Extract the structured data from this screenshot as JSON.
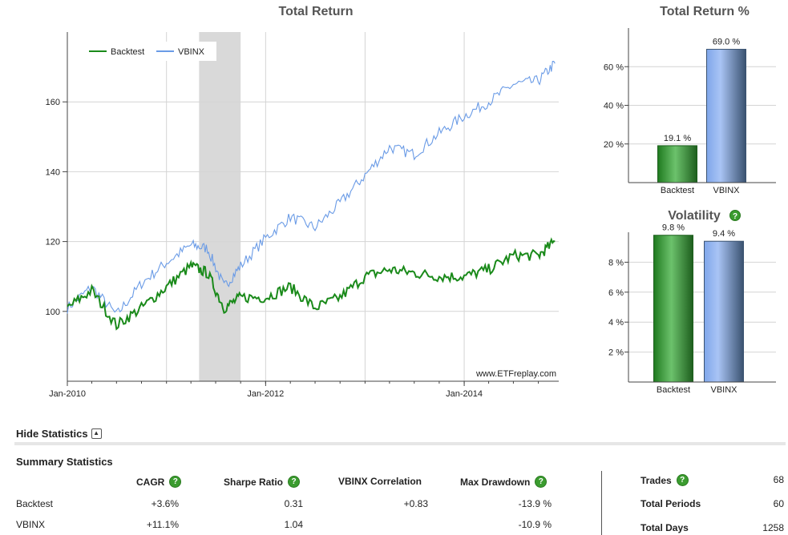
{
  "main_chart": {
    "title": "Total Return",
    "watermark": "www.ETFreplay.com",
    "x_ticks": [
      "Jan-2010",
      "Jan-2012",
      "Jan-2014"
    ],
    "y_ticks": [
      "100",
      "120",
      "140",
      "160"
    ],
    "legend": [
      "Backtest",
      "VBINX"
    ]
  },
  "chart_data": [
    {
      "type": "line",
      "title": "Total Return",
      "xlabel": "",
      "ylabel": "",
      "ylim": [
        80,
        180
      ],
      "xlim": [
        "2010-01",
        "2014-12"
      ],
      "x": [
        "2010-01",
        "2010-04",
        "2010-07",
        "2010-10",
        "2011-01",
        "2011-04",
        "2011-06",
        "2011-08",
        "2011-10",
        "2012-01",
        "2012-04",
        "2012-07",
        "2012-10",
        "2013-01",
        "2013-04",
        "2013-07",
        "2013-10",
        "2014-01",
        "2014-04",
        "2014-07",
        "2014-10",
        "2014-12"
      ],
      "series": [
        {
          "name": "Backtest",
          "color": "#1a8a1a",
          "values": [
            101,
            106,
            96,
            101,
            107,
            113,
            111,
            101,
            104,
            104,
            107,
            101,
            104,
            110,
            112,
            111,
            110,
            110,
            112,
            116,
            116,
            120
          ]
        },
        {
          "name": "VBINX",
          "color": "#6a9be6",
          "values": [
            101,
            107,
            99,
            108,
            114,
            119,
            118,
            107,
            113,
            121,
            127,
            124,
            131,
            139,
            147,
            145,
            151,
            156,
            160,
            165,
            166,
            171
          ]
        }
      ],
      "shaded_region": {
        "start": "2011-05",
        "end": "2011-10",
        "color": "#d8d8d8"
      },
      "legend_position": "top-left",
      "grid": true
    },
    {
      "type": "bar",
      "title": "Total Return %",
      "categories": [
        "Backtest",
        "VBINX"
      ],
      "values": [
        19.1,
        69.0
      ],
      "value_labels": [
        "19.1 %",
        "69.0 %"
      ],
      "y_ticks": [
        "20 %",
        "40 %",
        "60 %"
      ],
      "ylim": [
        0,
        80
      ],
      "colors": [
        "#2a8a2a",
        "#6a96e0"
      ]
    },
    {
      "type": "bar",
      "title": "Volatility",
      "categories": [
        "Backtest",
        "VBINX"
      ],
      "values": [
        9.8,
        9.4
      ],
      "value_labels": [
        "9.8 %",
        "9.4 %"
      ],
      "y_ticks": [
        "2 %",
        "4 %",
        "6 %",
        "8 %"
      ],
      "ylim": [
        0,
        10
      ],
      "colors": [
        "#2a8a2a",
        "#6a96e0"
      ]
    }
  ],
  "stats": {
    "toggle_label": "Hide Statistics",
    "summary_title": "Summary Statistics",
    "headers": {
      "cagr": "CAGR",
      "sharpe": "Sharpe Ratio",
      "corr": "VBINX Correlation",
      "dd": "Max Drawdown"
    },
    "rows": [
      {
        "name": "Backtest",
        "cagr": "+3.6%",
        "sharpe": "0.31",
        "corr": "+0.83",
        "dd": "-13.9 %"
      },
      {
        "name": "VBINX",
        "cagr": "+11.1%",
        "sharpe": "1.04",
        "corr": "",
        "dd": "-10.9 %"
      }
    ],
    "side": [
      {
        "label": "Trades",
        "value": "68"
      },
      {
        "label": "Total Periods",
        "value": "60"
      },
      {
        "label": "Total Days",
        "value": "1258"
      }
    ],
    "help_icon": "question-icon"
  }
}
